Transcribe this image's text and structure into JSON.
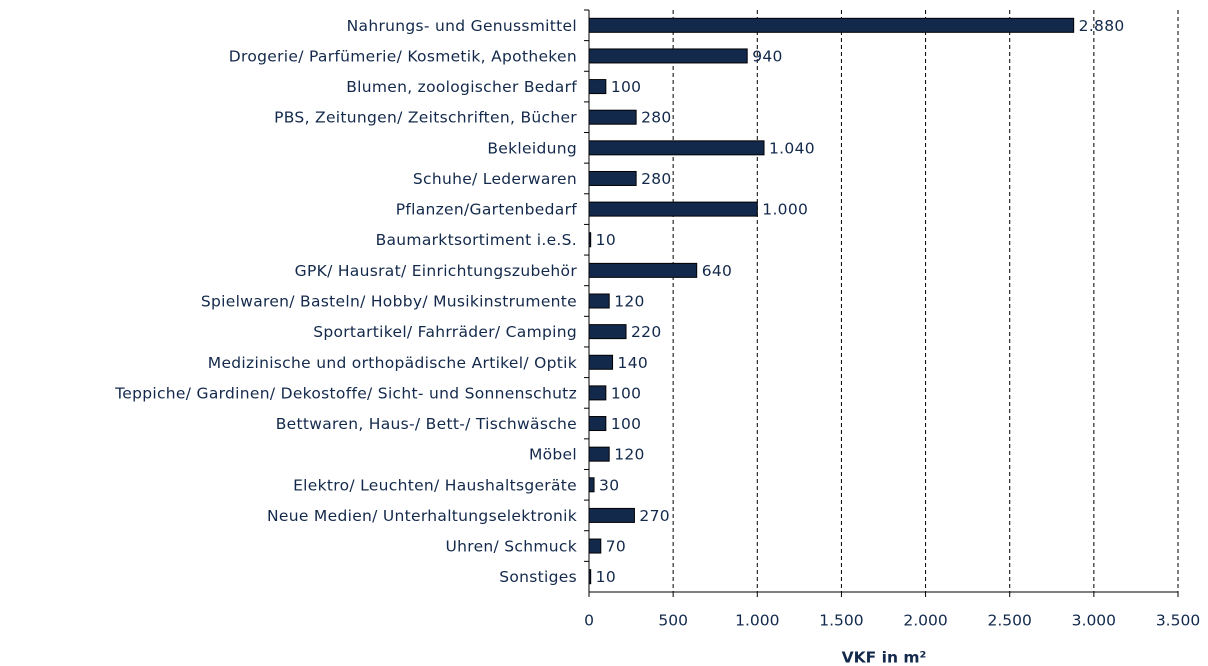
{
  "chart_data": {
    "type": "barh",
    "categories": [
      "Nahrungs- und Genussmittel",
      "Drogerie/ Parfümerie/ Kosmetik, Apotheken",
      "Blumen, zoologischer Bedarf",
      "PBS, Zeitungen/ Zeitschriften, Bücher",
      "Bekleidung",
      "Schuhe/ Lederwaren",
      "Pflanzen/Gartenbedarf",
      "Baumarktsortiment i.e.S.",
      "GPK/ Hausrat/ Einrichtungszubehör",
      "Spielwaren/ Basteln/ Hobby/ Musikinstrumente",
      "Sportartikel/ Fahrräder/ Camping",
      "Medizinische und orthopädische Artikel/ Optik",
      "Teppiche/ Gardinen/ Dekostoffe/ Sicht- und Sonnenschutz",
      "Bettwaren, Haus-/ Bett-/ Tischwäsche",
      "Möbel",
      "Elektro/ Leuchten/ Haushaltsgeräte",
      "Neue Medien/ Unterhaltungselektronik",
      "Uhren/ Schmuck",
      "Sonstiges"
    ],
    "values": [
      2880,
      940,
      100,
      280,
      1040,
      280,
      1000,
      10,
      640,
      120,
      220,
      140,
      100,
      100,
      120,
      30,
      270,
      70,
      10
    ],
    "value_labels": [
      "2.880",
      "940",
      "100",
      "280",
      "1.040",
      "280",
      "1.000",
      "10",
      "640",
      "120",
      "220",
      "140",
      "100",
      "100",
      "120",
      "30",
      "270",
      "70",
      "10"
    ],
    "color": "#13294b",
    "xlabel": "VKF in m²",
    "xlim": [
      0,
      3500
    ],
    "xticks": [
      0,
      500,
      {
        "value": 1000,
        "label": "1.000"
      },
      {
        "value": 1500,
        "label": "1.500"
      },
      {
        "value": 2000,
        "label": "2.000"
      },
      {
        "value": 2500,
        "label": "2.500"
      },
      {
        "value": 3000,
        "label": "3.000"
      },
      {
        "value": 3500,
        "label": "3.500"
      }
    ],
    "grid": true
  }
}
